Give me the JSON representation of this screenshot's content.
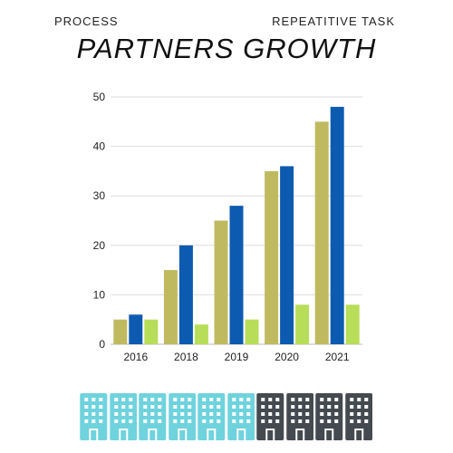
{
  "header": {
    "left_label": "PROCESS",
    "right_label": "REPEATITIVE TASK",
    "title": "PARTNERS GROWTH"
  },
  "chart_data": {
    "type": "bar",
    "categories": [
      "2016",
      "2018",
      "2019",
      "2020",
      "2021"
    ],
    "series": [
      {
        "values": [
          5,
          15,
          25,
          35,
          45
        ],
        "color": "#bfba60"
      },
      {
        "values": [
          6,
          20,
          28,
          36,
          48
        ],
        "color": "#0d5bb0"
      },
      {
        "values": [
          5,
          4,
          5,
          8,
          8
        ],
        "color": "#b8dd58"
      }
    ],
    "ylim": [
      0,
      50
    ],
    "yticks": [
      0,
      10,
      20,
      30,
      40,
      50
    ],
    "grid": true
  },
  "buildings": {
    "count_highlighted": 6,
    "count_total": 10,
    "highlight_color": "#6fd3dd",
    "base_color": "#444a50"
  }
}
